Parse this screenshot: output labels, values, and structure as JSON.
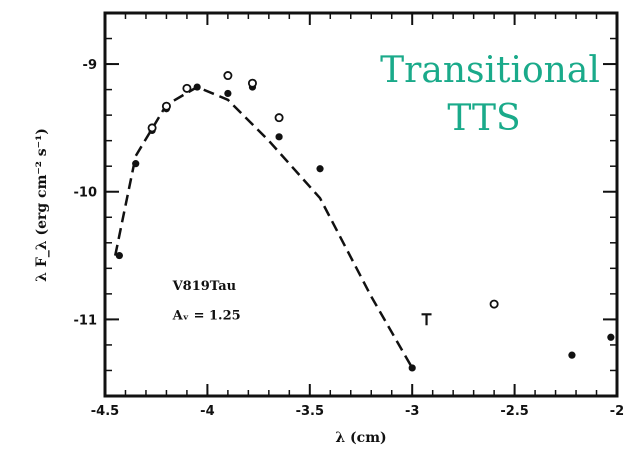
{
  "chart_data": {
    "type": "scatter",
    "title": "",
    "xlabel": "λ (cm)",
    "ylabel": "λ F_λ (erg cm⁻² s⁻¹)",
    "xlim": [
      -4.5,
      -2.0
    ],
    "ylim": [
      -11.6,
      -8.6
    ],
    "x_ticks": [
      -4.5,
      -4,
      -3.5,
      -3,
      -2.5,
      -2
    ],
    "x_tick_labels": [
      "-4.5",
      "-4",
      "-3.5",
      "-3",
      "-2.5",
      "-2"
    ],
    "y_ticks": [
      -9,
      -10,
      -11
    ],
    "y_tick_labels": [
      "-9",
      "-10",
      "-11"
    ],
    "grid": false,
    "series": [
      {
        "marker": "filled-circle",
        "x": [
          -4.43,
          -4.35,
          -4.27,
          -4.2,
          -4.05,
          -3.9,
          -3.78,
          -3.65,
          -3.45,
          -3.0,
          -2.22,
          -2.03
        ],
        "y": [
          -10.5,
          -9.78,
          -9.52,
          -9.35,
          -9.18,
          -9.23,
          -9.18,
          -9.57,
          -9.82,
          -11.38,
          -11.28,
          -11.14
        ]
      },
      {
        "marker": "open-circle",
        "x": [
          -4.27,
          -4.2,
          -4.1,
          -3.9,
          -3.78,
          -3.65,
          -2.6
        ],
        "y": [
          -9.5,
          -9.33,
          -9.19,
          -9.09,
          -9.15,
          -9.42,
          -10.88
        ]
      },
      {
        "marker": "upper-limit",
        "x": [
          -2.93
        ],
        "y": [
          -10.96
        ]
      },
      {
        "style": "dashed-line",
        "x": [
          -4.45,
          -4.35,
          -4.2,
          -4.05,
          -3.9,
          -3.7,
          -3.45,
          -3.2,
          -3.0
        ],
        "y": [
          -10.5,
          -9.72,
          -9.32,
          -9.18,
          -9.28,
          -9.6,
          -10.05,
          -10.82,
          -11.38
        ]
      }
    ],
    "annotations": [
      {
        "text": "V819Tau",
        "x": -4.17,
        "y": -10.77
      },
      {
        "text": "Aᵥ = 1.25",
        "x": -4.17,
        "y": -11.0
      }
    ]
  },
  "overlay": {
    "line1": "Transitional",
    "line2": "TTS"
  }
}
